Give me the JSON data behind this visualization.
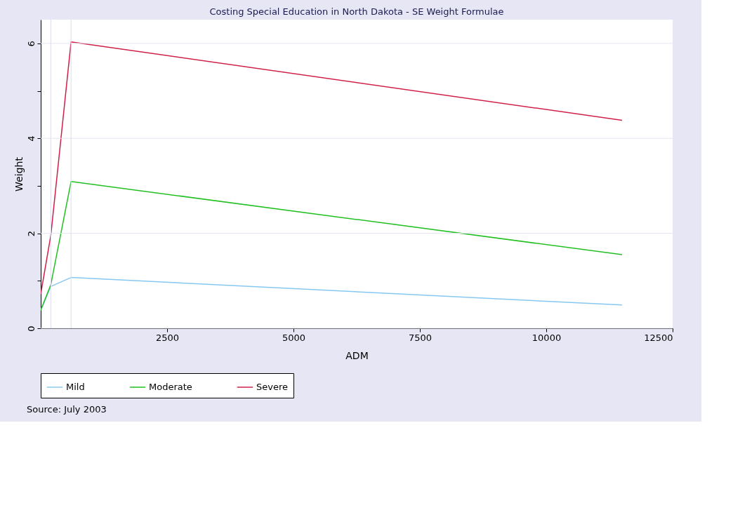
{
  "chart_data": {
    "type": "line",
    "title": "Costing Special Education in North Dakota - SE Weight Formulae",
    "xlabel": "ADM",
    "ylabel": "Weight",
    "xlim": [
      0,
      12500
    ],
    "xticks": [
      2500,
      5000,
      7500,
      10000,
      12500
    ],
    "ylim": [
      0,
      6.5
    ],
    "yticks": [
      0,
      {
        "value": 1,
        "label": null
      },
      2,
      {
        "value": 3,
        "label": null
      },
      4,
      {
        "value": 5,
        "label": null
      },
      6
    ],
    "grid": "y",
    "legend": "bottom",
    "line_style": "solid",
    "marker": "none",
    "x": [
      0,
      200,
      600,
      11500
    ],
    "series": [
      {
        "name": "Mild",
        "color": "#87c8f0",
        "values": [
          0.38,
          0.88,
          1.07,
          0.49
        ]
      },
      {
        "name": "Moderate",
        "color": "#22c022",
        "values": [
          0.38,
          0.92,
          3.09,
          1.55
        ]
      },
      {
        "name": "Severe",
        "color": "#d0204a",
        "values": [
          0.72,
          1.96,
          6.03,
          4.38
        ]
      }
    ],
    "ref_lines": [
      {
        "axis": "x",
        "value": 200,
        "label": null,
        "color": "#dcdcf0"
      },
      {
        "axis": "x",
        "value": 600,
        "label": null,
        "color": "#dcdcf0"
      }
    ],
    "annotations": [
      "Source: July 2003"
    ]
  }
}
